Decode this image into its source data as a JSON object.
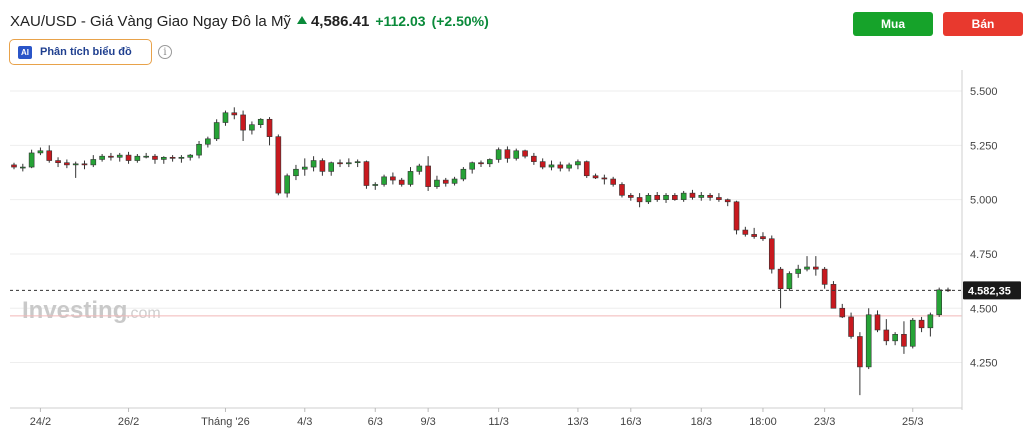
{
  "header": {
    "title": "XAU/USD - Giá Vàng Giao Ngay Đô la Mỹ",
    "last_price": "4,586.41",
    "change": "+112.03",
    "change_percent": "(+2.50%)",
    "up_color": "#0a8a3a"
  },
  "actions": {
    "buy_label": "Mua",
    "sell_label": "Bán",
    "buy_color": "#16a32a",
    "sell_color": "#e8392e"
  },
  "ai_analysis": {
    "icon_text": "AI",
    "label": "Phân tích biểu đồ",
    "info_glyph": "i"
  },
  "watermark": {
    "brand": "Investing",
    "suffix": ".com"
  },
  "chart_data": {
    "type": "candlestick",
    "y_ticks": [
      "5.500",
      "5.250",
      "5.000",
      "4.750",
      "4.500",
      "4.250"
    ],
    "y_tick_values": [
      5500,
      5250,
      5000,
      4750,
      4500,
      4250
    ],
    "ylim": [
      4050,
      5560
    ],
    "x_tick_labels": [
      "24/2",
      "26/2",
      "Tháng '26",
      "4/3",
      "6/3",
      "9/3",
      "11/3",
      "13/3",
      "16/3",
      "18/3",
      "18:00",
      "23/3",
      "25/3"
    ],
    "x_tick_index": [
      3,
      13,
      24,
      33,
      41,
      47,
      55,
      64,
      70,
      78,
      85,
      92,
      102
    ],
    "current_price_label": "4.582,35",
    "current_price": 4582.35,
    "reference_level": 4465,
    "grid": "horizontal",
    "up_color": "#26a336",
    "down_color": "#c8191f",
    "candles": [
      [
        5160,
        5170,
        5140,
        5150
      ],
      [
        5150,
        5165,
        5130,
        5150
      ],
      [
        5150,
        5230,
        5145,
        5215
      ],
      [
        5215,
        5240,
        5205,
        5225
      ],
      [
        5225,
        5250,
        5170,
        5180
      ],
      [
        5180,
        5195,
        5150,
        5170
      ],
      [
        5170,
        5185,
        5145,
        5160
      ],
      [
        5160,
        5175,
        5100,
        5165
      ],
      [
        5165,
        5180,
        5140,
        5160
      ],
      [
        5160,
        5205,
        5150,
        5185
      ],
      [
        5185,
        5210,
        5175,
        5200
      ],
      [
        5200,
        5215,
        5180,
        5195
      ],
      [
        5195,
        5215,
        5175,
        5205
      ],
      [
        5205,
        5220,
        5165,
        5180
      ],
      [
        5180,
        5210,
        5170,
        5200
      ],
      [
        5200,
        5215,
        5190,
        5200
      ],
      [
        5200,
        5210,
        5165,
        5185
      ],
      [
        5185,
        5200,
        5165,
        5195
      ],
      [
        5195,
        5205,
        5175,
        5190
      ],
      [
        5190,
        5205,
        5170,
        5195
      ],
      [
        5195,
        5210,
        5180,
        5205
      ],
      [
        5205,
        5270,
        5190,
        5255
      ],
      [
        5255,
        5290,
        5240,
        5280
      ],
      [
        5280,
        5370,
        5270,
        5355
      ],
      [
        5355,
        5410,
        5340,
        5400
      ],
      [
        5400,
        5425,
        5370,
        5390
      ],
      [
        5390,
        5410,
        5270,
        5320
      ],
      [
        5320,
        5360,
        5300,
        5345
      ],
      [
        5345,
        5375,
        5330,
        5370
      ],
      [
        5370,
        5380,
        5250,
        5290
      ],
      [
        5290,
        5300,
        5020,
        5030
      ],
      [
        5030,
        5120,
        5010,
        5110
      ],
      [
        5110,
        5160,
        5090,
        5140
      ],
      [
        5140,
        5190,
        5110,
        5150
      ],
      [
        5150,
        5200,
        5130,
        5180
      ],
      [
        5180,
        5190,
        5110,
        5130
      ],
      [
        5130,
        5175,
        5110,
        5170
      ],
      [
        5170,
        5185,
        5150,
        5165
      ],
      [
        5165,
        5190,
        5150,
        5170
      ],
      [
        5170,
        5185,
        5150,
        5175
      ],
      [
        5175,
        5180,
        5050,
        5065
      ],
      [
        5065,
        5080,
        5045,
        5070
      ],
      [
        5070,
        5115,
        5060,
        5105
      ],
      [
        5105,
        5125,
        5070,
        5090
      ],
      [
        5090,
        5100,
        5060,
        5070
      ],
      [
        5070,
        5150,
        5060,
        5130
      ],
      [
        5130,
        5165,
        5115,
        5155
      ],
      [
        5155,
        5200,
        5040,
        5060
      ],
      [
        5060,
        5110,
        5050,
        5090
      ],
      [
        5090,
        5100,
        5060,
        5075
      ],
      [
        5075,
        5105,
        5065,
        5095
      ],
      [
        5095,
        5150,
        5085,
        5140
      ],
      [
        5140,
        5175,
        5120,
        5170
      ],
      [
        5170,
        5180,
        5150,
        5165
      ],
      [
        5165,
        5190,
        5150,
        5185
      ],
      [
        5185,
        5240,
        5170,
        5230
      ],
      [
        5230,
        5245,
        5170,
        5190
      ],
      [
        5190,
        5235,
        5180,
        5225
      ],
      [
        5225,
        5230,
        5190,
        5200
      ],
      [
        5200,
        5215,
        5160,
        5175
      ],
      [
        5175,
        5190,
        5140,
        5150
      ],
      [
        5150,
        5180,
        5135,
        5160
      ],
      [
        5160,
        5175,
        5130,
        5145
      ],
      [
        5145,
        5170,
        5130,
        5160
      ],
      [
        5160,
        5185,
        5140,
        5175
      ],
      [
        5175,
        5180,
        5100,
        5110
      ],
      [
        5110,
        5120,
        5095,
        5100
      ],
      [
        5100,
        5115,
        5070,
        5095
      ],
      [
        5095,
        5105,
        5060,
        5070
      ],
      [
        5070,
        5080,
        5010,
        5020
      ],
      [
        5020,
        5030,
        4995,
        5010
      ],
      [
        5010,
        5030,
        4965,
        4990
      ],
      [
        4990,
        5030,
        4980,
        5020
      ],
      [
        5020,
        5035,
        4990,
        5000
      ],
      [
        5000,
        5030,
        4985,
        5020
      ],
      [
        5020,
        5030,
        4995,
        5000
      ],
      [
        5000,
        5040,
        4990,
        5030
      ],
      [
        5030,
        5045,
        5000,
        5010
      ],
      [
        5010,
        5035,
        4995,
        5020
      ],
      [
        5020,
        5030,
        4995,
        5010
      ],
      [
        5010,
        5030,
        4990,
        5000
      ],
      [
        5000,
        5005,
        4970,
        4990
      ],
      [
        4990,
        4995,
        4840,
        4860
      ],
      [
        4860,
        4875,
        4830,
        4840
      ],
      [
        4840,
        4870,
        4820,
        4830
      ],
      [
        4830,
        4850,
        4810,
        4820
      ],
      [
        4820,
        4835,
        4660,
        4680
      ],
      [
        4680,
        4690,
        4500,
        4590
      ],
      [
        4590,
        4670,
        4580,
        4660
      ],
      [
        4660,
        4700,
        4640,
        4680
      ],
      [
        4680,
        4740,
        4670,
        4690
      ],
      [
        4690,
        4740,
        4650,
        4680
      ],
      [
        4680,
        4690,
        4590,
        4610
      ],
      [
        4610,
        4625,
        4500,
        4500
      ],
      [
        4500,
        4520,
        4455,
        4460
      ],
      [
        4460,
        4480,
        4360,
        4370
      ],
      [
        4370,
        4390,
        4100,
        4230
      ],
      [
        4230,
        4500,
        4220,
        4470
      ],
      [
        4470,
        4490,
        4390,
        4400
      ],
      [
        4400,
        4450,
        4330,
        4350
      ],
      [
        4350,
        4390,
        4330,
        4380
      ],
      [
        4380,
        4440,
        4290,
        4325
      ],
      [
        4325,
        4455,
        4315,
        4445
      ],
      [
        4445,
        4460,
        4390,
        4410
      ],
      [
        4410,
        4480,
        4370,
        4470
      ],
      [
        4470,
        4595,
        4460,
        4585
      ],
      [
        4585,
        4595,
        4575,
        4582
      ]
    ]
  }
}
